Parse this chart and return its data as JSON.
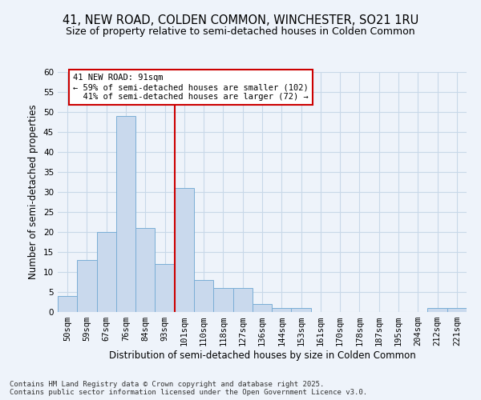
{
  "title": "41, NEW ROAD, COLDEN COMMON, WINCHESTER, SO21 1RU",
  "subtitle": "Size of property relative to semi-detached houses in Colden Common",
  "xlabel": "Distribution of semi-detached houses by size in Colden Common",
  "ylabel": "Number of semi-detached properties",
  "bar_color": "#c9d9ed",
  "bar_edge_color": "#7aaed6",
  "grid_color": "#c8d8e8",
  "background_color": "#eef3fa",
  "categories": [
    "50sqm",
    "59sqm",
    "67sqm",
    "76sqm",
    "84sqm",
    "93sqm",
    "101sqm",
    "110sqm",
    "118sqm",
    "127sqm",
    "136sqm",
    "144sqm",
    "153sqm",
    "161sqm",
    "170sqm",
    "178sqm",
    "187sqm",
    "195sqm",
    "204sqm",
    "212sqm",
    "221sqm"
  ],
  "values": [
    4,
    13,
    20,
    49,
    21,
    12,
    31,
    8,
    6,
    6,
    2,
    1,
    1,
    0,
    0,
    0,
    0,
    0,
    0,
    1,
    1
  ],
  "property_label": "41 NEW ROAD: 91sqm",
  "pct_smaller": 59,
  "count_smaller": 102,
  "pct_larger": 41,
  "count_larger": 72,
  "vline_position": 5.5,
  "ylim": [
    0,
    60
  ],
  "yticks": [
    0,
    5,
    10,
    15,
    20,
    25,
    30,
    35,
    40,
    45,
    50,
    55,
    60
  ],
  "annotation_box_color": "#ffffff",
  "annotation_box_edge": "#cc0000",
  "vline_color": "#cc0000",
  "footer_text": "Contains HM Land Registry data © Crown copyright and database right 2025.\nContains public sector information licensed under the Open Government Licence v3.0.",
  "title_fontsize": 10.5,
  "subtitle_fontsize": 9,
  "xlabel_fontsize": 8.5,
  "ylabel_fontsize": 8.5,
  "tick_fontsize": 7.5,
  "annotation_fontsize": 7.5,
  "footer_fontsize": 6.5
}
